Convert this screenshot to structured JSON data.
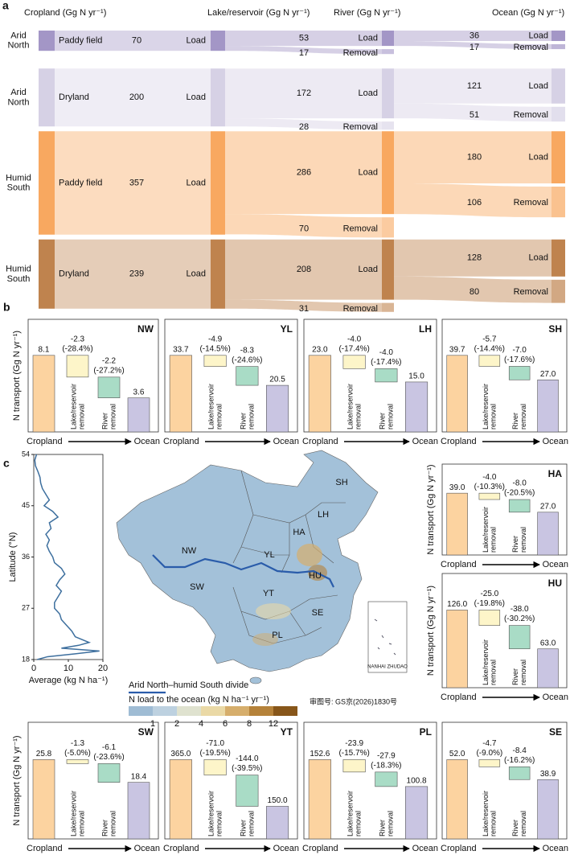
{
  "panel_labels": [
    "a",
    "b",
    "c"
  ],
  "chart_data": [
    {
      "type": "sankey",
      "columns": [
        "Cropland (Gg N yr⁻¹)",
        "Lake/reservoir (Gg N yr⁻¹)",
        "River (Gg N yr⁻¹)",
        "Ocean (Gg N yr⁻¹)"
      ],
      "load_label": "Load",
      "removal_label": "Removal",
      "rows": [
        {
          "region": "Arid North",
          "source": "Paddy field",
          "color": "#a396c6",
          "values": [
            70,
            53,
            17,
            36,
            17
          ]
        },
        {
          "region": "Arid North",
          "source": "Dryland",
          "color": "#d6d1e5",
          "values": [
            200,
            172,
            28,
            121,
            51
          ]
        },
        {
          "region": "Humid South",
          "source": "Paddy field",
          "color": "#f8a860",
          "values": [
            357,
            286,
            70,
            180,
            106
          ]
        },
        {
          "region": "Humid South",
          "source": "Dryland",
          "color": "#bf834e",
          "values": [
            239,
            208,
            31,
            128,
            80
          ]
        }
      ]
    },
    {
      "type": "waterfall",
      "title": "NW",
      "ylabel": "N transport (Gg N yr⁻¹)",
      "categories": [
        "Cropland",
        "Lake/reservoir removal",
        "River removal",
        "Ocean"
      ],
      "values": [
        8.1,
        -2.3,
        -2.2,
        3.6
      ],
      "value_labels": [
        "8.1",
        "-2.3",
        "-2.2",
        "3.6"
      ],
      "percent_labels": [
        "(-28.4%)",
        "(-27.2%)"
      ],
      "colors": [
        "#fcd3a0",
        "#fdf5c9",
        "#a9dcc6",
        "#c9c5e2"
      ]
    },
    {
      "type": "waterfall",
      "title": "YL",
      "categories": [
        "Cropland",
        "Lake/reservoir removal",
        "River removal",
        "Ocean"
      ],
      "values": [
        33.7,
        -4.9,
        -8.3,
        20.5
      ],
      "value_labels": [
        "33.7",
        "-4.9",
        "-8.3",
        "20.5"
      ],
      "percent_labels": [
        "(-14.5%)",
        "(-24.6%)"
      ],
      "colors": [
        "#fcd3a0",
        "#fdf5c9",
        "#a9dcc6",
        "#c9c5e2"
      ]
    },
    {
      "type": "waterfall",
      "title": "LH",
      "categories": [
        "Cropland",
        "Lake/reservoir removal",
        "River removal",
        "Ocean"
      ],
      "values": [
        23.0,
        -4.0,
        -4.0,
        15.0
      ],
      "value_labels": [
        "23.0",
        "-4.0",
        "-4.0",
        "15.0"
      ],
      "percent_labels": [
        "(-17.4%)",
        "(-17.4%)"
      ],
      "colors": [
        "#fcd3a0",
        "#fdf5c9",
        "#a9dcc6",
        "#c9c5e2"
      ]
    },
    {
      "type": "waterfall",
      "title": "SH",
      "categories": [
        "Cropland",
        "Lake/reservoir removal",
        "River removal",
        "Ocean"
      ],
      "values": [
        39.7,
        -5.7,
        -7.0,
        27.0
      ],
      "value_labels": [
        "39.7",
        "-5.7",
        "-7.0",
        "27.0"
      ],
      "percent_labels": [
        "(-14.4%)",
        "(-17.6%)"
      ],
      "colors": [
        "#fcd3a0",
        "#fdf5c9",
        "#a9dcc6",
        "#c9c5e2"
      ]
    },
    {
      "type": "waterfall",
      "title": "HA",
      "ylabel": "N transport (Gg N yr⁻¹)",
      "categories": [
        "Cropland",
        "Lake/reservoir removal",
        "River removal",
        "Ocean"
      ],
      "values": [
        39.0,
        -4.0,
        -8.0,
        27.0
      ],
      "value_labels": [
        "39.0",
        "-4.0",
        "-8.0",
        "27.0"
      ],
      "percent_labels": [
        "(-10.3%)",
        "(-20.5%)"
      ],
      "colors": [
        "#fcd3a0",
        "#fdf5c9",
        "#a9dcc6",
        "#c9c5e2"
      ]
    },
    {
      "type": "waterfall",
      "title": "HU",
      "ylabel": "N transport (Gg N yr⁻¹)",
      "categories": [
        "Cropland",
        "Lake/reservoir removal",
        "River removal",
        "Ocean"
      ],
      "values": [
        126.0,
        -25.0,
        -38.0,
        63.0
      ],
      "value_labels": [
        "126.0",
        "-25.0",
        "-38.0",
        "63.0"
      ],
      "percent_labels": [
        "(-19.8%)",
        "(-30.2%)"
      ],
      "colors": [
        "#fcd3a0",
        "#fdf5c9",
        "#a9dcc6",
        "#c9c5e2"
      ]
    },
    {
      "type": "waterfall",
      "title": "SW",
      "ylabel": "N transport (Gg N yr⁻¹)",
      "categories": [
        "Cropland",
        "Lake/reservoir removal",
        "River removal",
        "Ocean"
      ],
      "values": [
        25.8,
        -1.3,
        -6.1,
        18.4
      ],
      "value_labels": [
        "25.8",
        "-1.3",
        "-6.1",
        "18.4"
      ],
      "percent_labels": [
        "(-5.0%)",
        "(-23.6%)"
      ],
      "colors": [
        "#fcd3a0",
        "#fdf5c9",
        "#a9dcc6",
        "#c9c5e2"
      ]
    },
    {
      "type": "waterfall",
      "title": "YT",
      "categories": [
        "Cropland",
        "Lake/reservoir removal",
        "River removal",
        "Ocean"
      ],
      "values": [
        365.0,
        -71.0,
        -144.0,
        150.0
      ],
      "value_labels": [
        "365.0",
        "-71.0",
        "-144.0",
        "150.0"
      ],
      "percent_labels": [
        "(-19.5%)",
        "(-39.5%)"
      ],
      "colors": [
        "#fcd3a0",
        "#fdf5c9",
        "#a9dcc6",
        "#c9c5e2"
      ]
    },
    {
      "type": "waterfall",
      "title": "PL",
      "categories": [
        "Cropland",
        "Lake/reservoir removal",
        "River removal",
        "Ocean"
      ],
      "values": [
        152.6,
        -23.9,
        -27.9,
        100.8
      ],
      "value_labels": [
        "152.6",
        "-23.9",
        "-27.9",
        "100.8"
      ],
      "percent_labels": [
        "(-15.7%)",
        "(-18.3%)"
      ],
      "colors": [
        "#fcd3a0",
        "#fdf5c9",
        "#a9dcc6",
        "#c9c5e2"
      ]
    },
    {
      "type": "waterfall",
      "title": "SE",
      "categories": [
        "Cropland",
        "Lake/reservoir removal",
        "River removal",
        "Ocean"
      ],
      "values": [
        52.0,
        -4.7,
        -8.4,
        38.9
      ],
      "value_labels": [
        "52.0",
        "-4.7",
        "-8.4",
        "38.9"
      ],
      "percent_labels": [
        "(-9.0%)",
        "(-16.2%)"
      ],
      "colors": [
        "#fcd3a0",
        "#fdf5c9",
        "#a9dcc6",
        "#c9c5e2"
      ]
    },
    {
      "type": "line",
      "xlabel": "Average (kg N ha⁻¹)",
      "ylabel": "Latitude (°N)",
      "color": "#3d6f9e",
      "xlim": [
        0,
        20
      ],
      "xticks": [
        0,
        10,
        20
      ],
      "ylim": [
        18,
        54
      ],
      "yticks": [
        18,
        27,
        36,
        45,
        54
      ],
      "y": [
        54,
        53,
        52,
        51,
        50,
        49,
        48,
        47,
        46,
        45,
        44,
        43,
        42,
        41,
        40,
        39,
        38,
        37,
        36,
        35,
        34,
        33,
        32,
        31,
        30,
        29,
        28,
        27,
        26,
        25,
        24,
        23,
        22,
        21,
        20.5,
        20,
        19.5,
        19,
        18.5,
        18
      ],
      "values": [
        0.8,
        0.3,
        0.5,
        1.2,
        1.8,
        2.0,
        2.5,
        3.5,
        4.5,
        3.0,
        5.5,
        7.0,
        4.5,
        5.0,
        3.5,
        4.5,
        3.8,
        4.5,
        5.5,
        6.0,
        8.0,
        9.0,
        7.5,
        6.5,
        8.0,
        7.0,
        6.0,
        6.0,
        7.5,
        8.0,
        9.5,
        11.0,
        12.0,
        16.0,
        13.0,
        8.0,
        19.0,
        12.0,
        4.0,
        1.0
      ]
    }
  ],
  "map": {
    "regions": [
      "NW",
      "YL",
      "HA",
      "HU",
      "LH",
      "SH",
      "SW",
      "YT",
      "SE",
      "PL"
    ],
    "divide_label": "Arid North–humid South divide",
    "colorbar": {
      "title": "N load to the ocean (kg N ha⁻¹ yr⁻¹)",
      "ticks": [
        1,
        2,
        4,
        6,
        8,
        12
      ],
      "colors": [
        "#9fbcd4",
        "#bdd1e0",
        "#dfe2cf",
        "#ead9a6",
        "#d6ae6c",
        "#b5823a",
        "#87561a"
      ]
    },
    "inset_label": "NANHAI ZHUDAO",
    "approval": "审图号: GS京(2026)1830号"
  }
}
